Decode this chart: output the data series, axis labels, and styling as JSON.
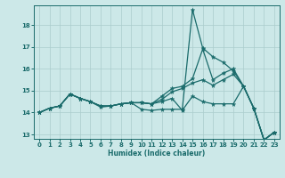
{
  "xlabel": "Humidex (Indice chaleur)",
  "background_color": "#cce8e8",
  "line_color": "#1a6b6b",
  "grid_color": "#aacccc",
  "xlim": [
    -0.5,
    23.5
  ],
  "ylim": [
    12.8,
    18.9
  ],
  "yticks": [
    13,
    14,
    15,
    16,
    17,
    18
  ],
  "xticks": [
    0,
    1,
    2,
    3,
    4,
    5,
    6,
    7,
    8,
    9,
    10,
    11,
    12,
    13,
    14,
    15,
    16,
    17,
    18,
    19,
    20,
    21,
    22,
    23
  ],
  "series": [
    {
      "x": [
        0,
        1,
        2,
        3,
        4,
        5,
        6,
        7,
        8,
        9,
        10,
        11,
        12,
        13,
        14,
        15,
        16,
        17,
        18,
        19,
        20,
        21,
        22,
        23
      ],
      "y": [
        14.0,
        14.2,
        14.3,
        14.85,
        14.65,
        14.5,
        14.3,
        14.3,
        14.4,
        14.45,
        14.15,
        14.1,
        14.15,
        14.15,
        14.15,
        18.7,
        16.95,
        16.55,
        16.3,
        15.9,
        15.2,
        14.2,
        12.75,
        13.1
      ]
    },
    {
      "x": [
        0,
        1,
        2,
        3,
        4,
        5,
        6,
        7,
        8,
        9,
        10,
        11,
        12,
        13,
        14,
        15,
        16,
        17,
        18,
        19,
        20,
        21,
        22,
        23
      ],
      "y": [
        14.0,
        14.2,
        14.3,
        14.85,
        14.65,
        14.5,
        14.3,
        14.3,
        14.4,
        14.45,
        14.45,
        14.4,
        14.75,
        15.1,
        15.2,
        15.55,
        16.9,
        15.5,
        15.8,
        16.0,
        15.2,
        14.2,
        12.75,
        13.1
      ]
    },
    {
      "x": [
        0,
        1,
        2,
        3,
        4,
        5,
        6,
        7,
        8,
        9,
        10,
        11,
        12,
        13,
        14,
        15,
        16,
        17,
        18,
        19,
        20,
        21,
        22,
        23
      ],
      "y": [
        14.0,
        14.2,
        14.3,
        14.85,
        14.65,
        14.5,
        14.3,
        14.3,
        14.4,
        14.45,
        14.45,
        14.4,
        14.6,
        14.95,
        15.1,
        15.35,
        15.5,
        15.25,
        15.5,
        15.75,
        15.2,
        14.2,
        12.75,
        13.1
      ]
    },
    {
      "x": [
        0,
        1,
        2,
        3,
        4,
        5,
        6,
        7,
        8,
        9,
        10,
        11,
        12,
        13,
        14,
        15,
        16,
        17,
        18,
        19,
        20,
        21,
        22,
        23
      ],
      "y": [
        14.0,
        14.2,
        14.3,
        14.85,
        14.65,
        14.5,
        14.25,
        14.3,
        14.4,
        14.45,
        14.45,
        14.4,
        14.5,
        14.65,
        14.1,
        14.75,
        14.5,
        14.4,
        14.4,
        14.4,
        15.2,
        14.2,
        12.75,
        13.1
      ]
    }
  ]
}
